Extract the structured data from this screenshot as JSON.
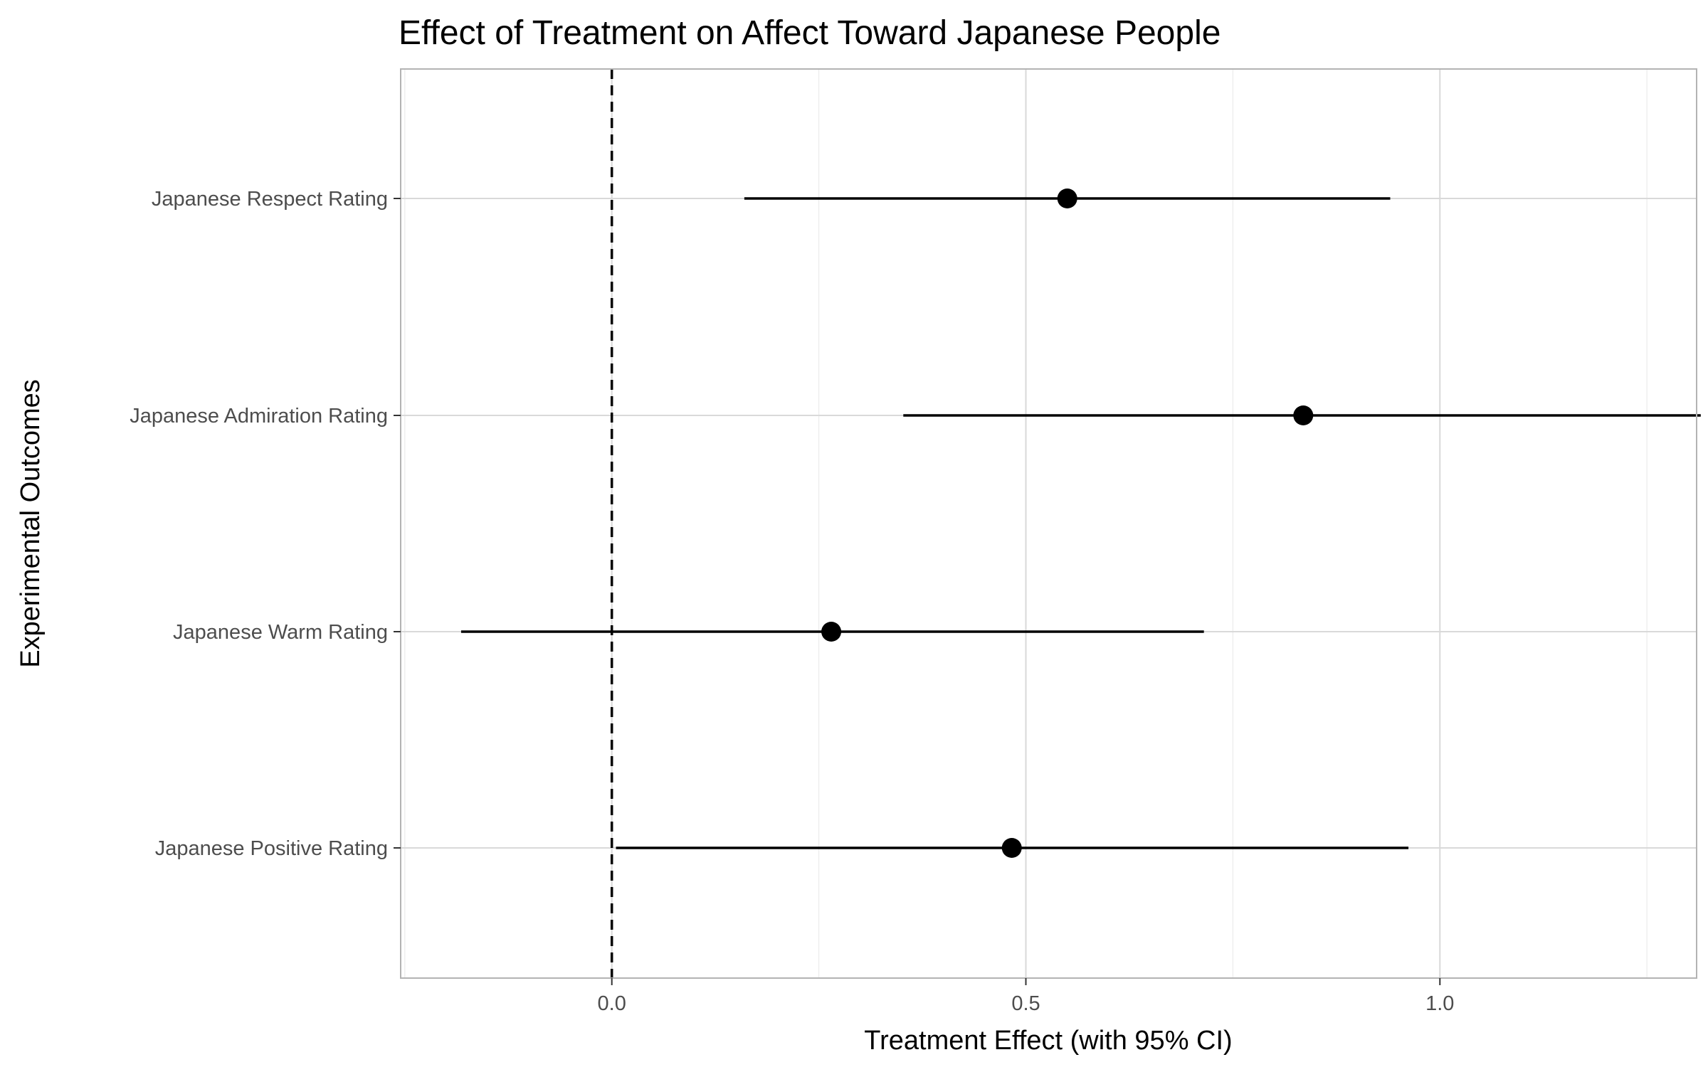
{
  "chart_data": {
    "type": "errorbar",
    "orientation": "horizontal",
    "title": "Effect of Treatment on Affect Toward Japanese People",
    "xlabel": "Treatment Effect (with 95% CI)",
    "ylabel": "Experimental Outcomes",
    "xlim": [
      -0.255,
      1.31
    ],
    "x_ticks": [
      0.0,
      0.5,
      1.0
    ],
    "x_tick_labels": [
      "0.0",
      "0.5",
      "1.0"
    ],
    "x_minor_ticks": [
      -0.25,
      0.25,
      0.75,
      1.25
    ],
    "reference_line": {
      "x": 0,
      "style": "dashed"
    },
    "grid": true,
    "legend": "none",
    "categories": [
      "Japanese Respect Rating",
      "Japanese Admiration Rating",
      "Japanese Warm Rating",
      "Japanese Positive Rating"
    ],
    "estimates": [
      0.55,
      0.835,
      0.265,
      0.483
    ],
    "ci_low": [
      0.16,
      0.352,
      -0.182,
      0.005
    ],
    "ci_high": [
      0.94,
      1.315,
      0.715,
      0.962
    ],
    "colors": {
      "point": "#000000",
      "errorbar": "#000000",
      "grid": "#d9d9d9",
      "panel_border": "#b3b3b3",
      "tick_text": "#4d4d4d"
    }
  }
}
